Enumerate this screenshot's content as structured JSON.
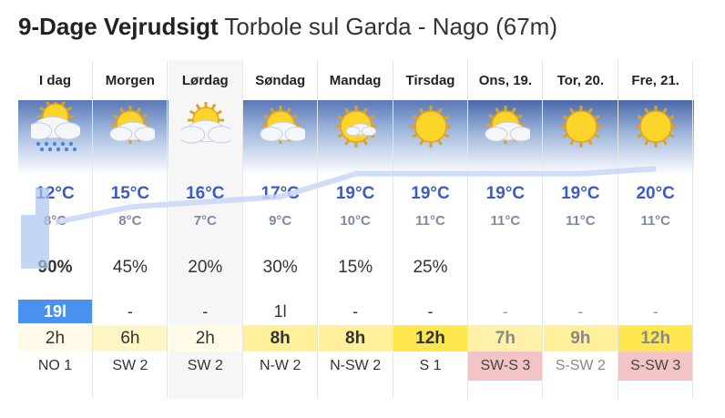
{
  "title": {
    "bold": "9-Dage Vejrudsigt",
    "location": "Torbole sul Garda - Nago (67m)"
  },
  "colors": {
    "temp_max": "#3c5bc4",
    "rain_highlight": "#4a90f0",
    "wind_warning": "#f2c4c6"
  },
  "days": [
    {
      "label": "I dag",
      "icon": "sun-cloud-rain-icon",
      "tmax": "12°C",
      "tmin": "8°C",
      "prob": "90%",
      "prob_bold": true,
      "rain": "19l",
      "rain_hl": true,
      "sun": "2h",
      "sun_bg": "#fffbe8",
      "sun_bold": false,
      "wind": "NO 1",
      "wind_bg": "",
      "wind_color": "#333"
    },
    {
      "label": "Morgen",
      "icon": "sun-cloud-icon",
      "tmax": "15°C",
      "tmin": "8°C",
      "prob": "45%",
      "rain": "-",
      "sun": "6h",
      "sun_bg": "#fff6c4",
      "wind": "SW 2",
      "wind_bg": "",
      "wind_color": "#333"
    },
    {
      "label": "Lørdag",
      "icon": "cloud-sun-icon",
      "tmax": "16°C",
      "tmin": "7°C",
      "prob": "20%",
      "rain": "-",
      "sun": "2h",
      "sun_bg": "#fffbe8",
      "wind": "SW 2",
      "wind_bg": "",
      "wind_color": "#333",
      "selected": true
    },
    {
      "label": "Søndag",
      "icon": "sun-cloud-icon",
      "tmax": "17°C",
      "tmin": "9°C",
      "prob": "30%",
      "rain": "1l",
      "sun": "8h",
      "sun_bg": "#fff099",
      "sun_bold": true,
      "wind": "N-W 2",
      "wind_bg": "",
      "wind_color": "#333"
    },
    {
      "label": "Mandag",
      "icon": "sun-small-cloud-icon",
      "tmax": "19°C",
      "tmin": "10°C",
      "prob": "15%",
      "rain": "-",
      "sun": "8h",
      "sun_bg": "#fff099",
      "sun_bold": true,
      "wind": "N-SW 2",
      "wind_bg": "",
      "wind_color": "#333"
    },
    {
      "label": "Tirsdag",
      "icon": "sun-icon",
      "tmax": "19°C",
      "tmin": "11°C",
      "prob": "25%",
      "rain": "-",
      "sun": "12h",
      "sun_bg": "#ffe84f",
      "sun_bold": true,
      "wind": "S 1",
      "wind_bg": "",
      "wind_color": "#333"
    },
    {
      "label": "Ons, 19.",
      "icon": "sun-cloud-icon",
      "tmax": "19°C",
      "tmin": "11°C",
      "prob": "",
      "rain": "-",
      "sun": "7h",
      "sun_bg": "#fff2a8",
      "sun_bold": true,
      "faded": true,
      "wind": "SW-S 3",
      "wind_bg": "#f2c4c6",
      "wind_color": "#444"
    },
    {
      "label": "Tor, 20.",
      "icon": "sun-icon",
      "tmax": "19°C",
      "tmin": "11°C",
      "prob": "",
      "rain": "-",
      "sun": "9h",
      "sun_bg": "#fff099",
      "sun_bold": true,
      "faded": true,
      "wind": "S-SW 2",
      "wind_bg": "",
      "wind_color": "#888"
    },
    {
      "label": "Fre, 21.",
      "icon": "sun-icon",
      "tmax": "20°C",
      "tmin": "11°C",
      "prob": "",
      "rain": "-",
      "sun": "12h",
      "sun_bg": "#ffe84f",
      "sun_bold": true,
      "faded": true,
      "wind": "S-SW 3",
      "wind_bg": "#f2c4c6",
      "wind_color": "#444"
    }
  ]
}
